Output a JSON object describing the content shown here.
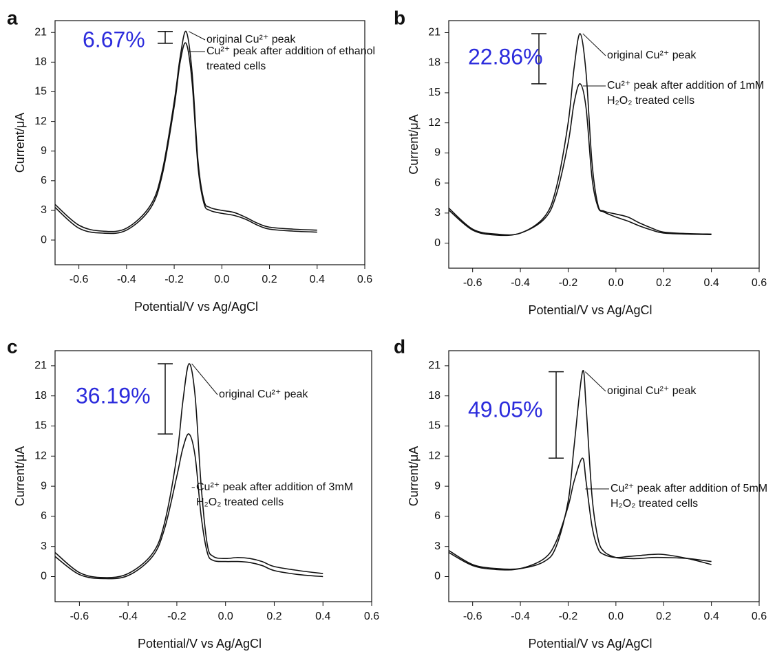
{
  "chart_data": [
    {
      "type": "line",
      "label": "a",
      "annotation": "6.67%",
      "xlabel": "Potential/V vs Ag/AgCl",
      "ylabel": "Current/μA",
      "x": [
        -0.7,
        -0.6,
        -0.5,
        -0.4,
        -0.3,
        -0.25,
        -0.2,
        -0.175,
        -0.15,
        -0.125,
        -0.1,
        -0.075,
        -0.05,
        0,
        0.05,
        0.1,
        0.15,
        0.2,
        0.3,
        0.4
      ],
      "series": [
        {
          "name": "original Cu²⁺ peak",
          "color": "#111111",
          "values": [
            3.6,
            1.5,
            0.9,
            1.2,
            3.5,
            7,
            14,
            18.5,
            21.1,
            17,
            8,
            4,
            3.3,
            3.0,
            2.8,
            2.3,
            1.7,
            1.3,
            1.1,
            1.0
          ]
        },
        {
          "name": "Cu²⁺ peak after addition of ethanol treated cells",
          "color": "#111111",
          "values": [
            3.3,
            1.2,
            0.7,
            1.0,
            3.2,
            6.6,
            13.5,
            18,
            19.9,
            16,
            7.4,
            3.7,
            3.0,
            2.7,
            2.5,
            2.1,
            1.5,
            1.1,
            0.9,
            0.8
          ]
        }
      ],
      "xlim": [
        -0.7,
        0.6
      ],
      "xticks": [
        -0.6,
        -0.4,
        -0.2,
        {
          "value": 0,
          "label": "0.0"
        },
        0.2,
        0.4,
        0.6
      ],
      "ylim": [
        -2.5,
        22.2
      ],
      "yticks": [
        0,
        3,
        6,
        9,
        12,
        15,
        18,
        21
      ]
    },
    {
      "type": "line",
      "label": "b",
      "annotation": "22.86%",
      "xlabel": "Potential/V vs Ag/AgCl",
      "ylabel": "Current/μA",
      "x": [
        -0.7,
        -0.6,
        -0.5,
        -0.4,
        -0.3,
        -0.25,
        -0.2,
        -0.175,
        -0.15,
        -0.125,
        -0.1,
        -0.075,
        -0.05,
        0,
        0.05,
        0.1,
        0.15,
        0.2,
        0.3,
        0.4
      ],
      "series": [
        {
          "name": "original Cu²⁺ peak",
          "color": "#111111",
          "values": [
            3.5,
            1.4,
            0.9,
            1.0,
            2.6,
            5.5,
            12,
            17.5,
            20.9,
            17,
            8,
            3.8,
            3.2,
            2.9,
            2.6,
            2.0,
            1.5,
            1.1,
            0.95,
            0.9
          ]
        },
        {
          "name": "Cu²⁺ peak after addition of 1mM H₂O₂ treated cells",
          "color": "#111111",
          "values": [
            3.3,
            1.3,
            0.8,
            1.0,
            2.4,
            4.8,
            10,
            14,
            15.9,
            13.5,
            6.5,
            3.6,
            3.1,
            2.6,
            2.2,
            1.7,
            1.3,
            1.0,
            0.9,
            0.85
          ]
        }
      ],
      "xlim": [
        -0.7,
        0.6
      ],
      "xticks": [
        -0.6,
        -0.4,
        -0.2,
        {
          "value": 0,
          "label": "0.0"
        },
        0.2,
        0.4,
        0.6
      ],
      "ylim": [
        -2.5,
        22.2
      ],
      "yticks": [
        0,
        3,
        6,
        9,
        12,
        15,
        18,
        21
      ]
    },
    {
      "type": "line",
      "label": "c",
      "annotation": "36.19%",
      "xlabel": "Potential/V vs Ag/AgCl",
      "ylabel": "Current/μA",
      "x": [
        -0.7,
        -0.6,
        -0.5,
        -0.4,
        -0.3,
        -0.25,
        -0.2,
        -0.175,
        -0.15,
        -0.125,
        -0.1,
        -0.075,
        -0.05,
        0,
        0.05,
        0.1,
        0.15,
        0.2,
        0.3,
        0.4
      ],
      "series": [
        {
          "name": "original Cu²⁺ peak",
          "color": "#111111",
          "values": [
            2.4,
            0.4,
            -0.1,
            0.3,
            2.3,
            5.4,
            12,
            17.5,
            21.2,
            18,
            9,
            3.2,
            2.0,
            1.8,
            1.9,
            1.8,
            1.5,
            1.0,
            0.6,
            0.3
          ]
        },
        {
          "name": "Cu²⁺ peak after addition of 3mM H₂O₂ treated cells",
          "color": "#111111",
          "values": [
            2.0,
            0.2,
            -0.2,
            0.1,
            2.0,
            4.8,
            10,
            12.8,
            14.2,
            12,
            6,
            2.4,
            1.6,
            1.5,
            1.5,
            1.4,
            1.1,
            0.6,
            0.2,
            0.0
          ]
        }
      ],
      "xlim": [
        -0.7,
        0.6
      ],
      "xticks": [
        -0.6,
        -0.4,
        -0.2,
        {
          "value": 0,
          "label": "0.0"
        },
        0.2,
        0.4,
        0.6
      ],
      "ylim": [
        -2.5,
        22.5
      ],
      "yticks": [
        0,
        3,
        6,
        9,
        12,
        15,
        18,
        21
      ]
    },
    {
      "type": "line",
      "label": "d",
      "annotation": "49.05%",
      "xlabel": "Potential/V vs Ag/AgCl",
      "ylabel": "Current/μA",
      "x": [
        -0.7,
        -0.6,
        -0.5,
        -0.4,
        -0.3,
        -0.25,
        -0.2,
        -0.175,
        -0.14,
        -0.125,
        -0.1,
        -0.075,
        -0.05,
        0,
        0.05,
        0.1,
        0.15,
        0.2,
        0.3,
        0.4
      ],
      "series": [
        {
          "name": "original Cu²⁺ peak",
          "color": "#111111",
          "values": [
            2.6,
            1.2,
            0.8,
            0.8,
            1.5,
            3.0,
            7.5,
            13,
            20.4,
            17,
            8,
            3.8,
            2.5,
            1.9,
            1.8,
            1.8,
            1.9,
            1.9,
            1.8,
            1.5
          ]
        },
        {
          "name": "Cu²⁺ peak after addition of 5mM H₂O₂ treated cells",
          "color": "#111111",
          "values": [
            2.4,
            1.1,
            0.7,
            0.8,
            1.8,
            3.5,
            7,
            9.5,
            11.8,
            9.5,
            5,
            2.8,
            2.2,
            1.9,
            2.0,
            2.1,
            2.2,
            2.2,
            1.8,
            1.2
          ]
        }
      ],
      "xlim": [
        -0.7,
        0.6
      ],
      "xticks": [
        -0.6,
        -0.4,
        -0.2,
        {
          "value": 0,
          "label": "0.0"
        },
        0.2,
        0.4,
        0.6
      ],
      "ylim": [
        -2.5,
        22.5
      ],
      "yticks": [
        0,
        3,
        6,
        9,
        12,
        15,
        18,
        21
      ]
    }
  ]
}
